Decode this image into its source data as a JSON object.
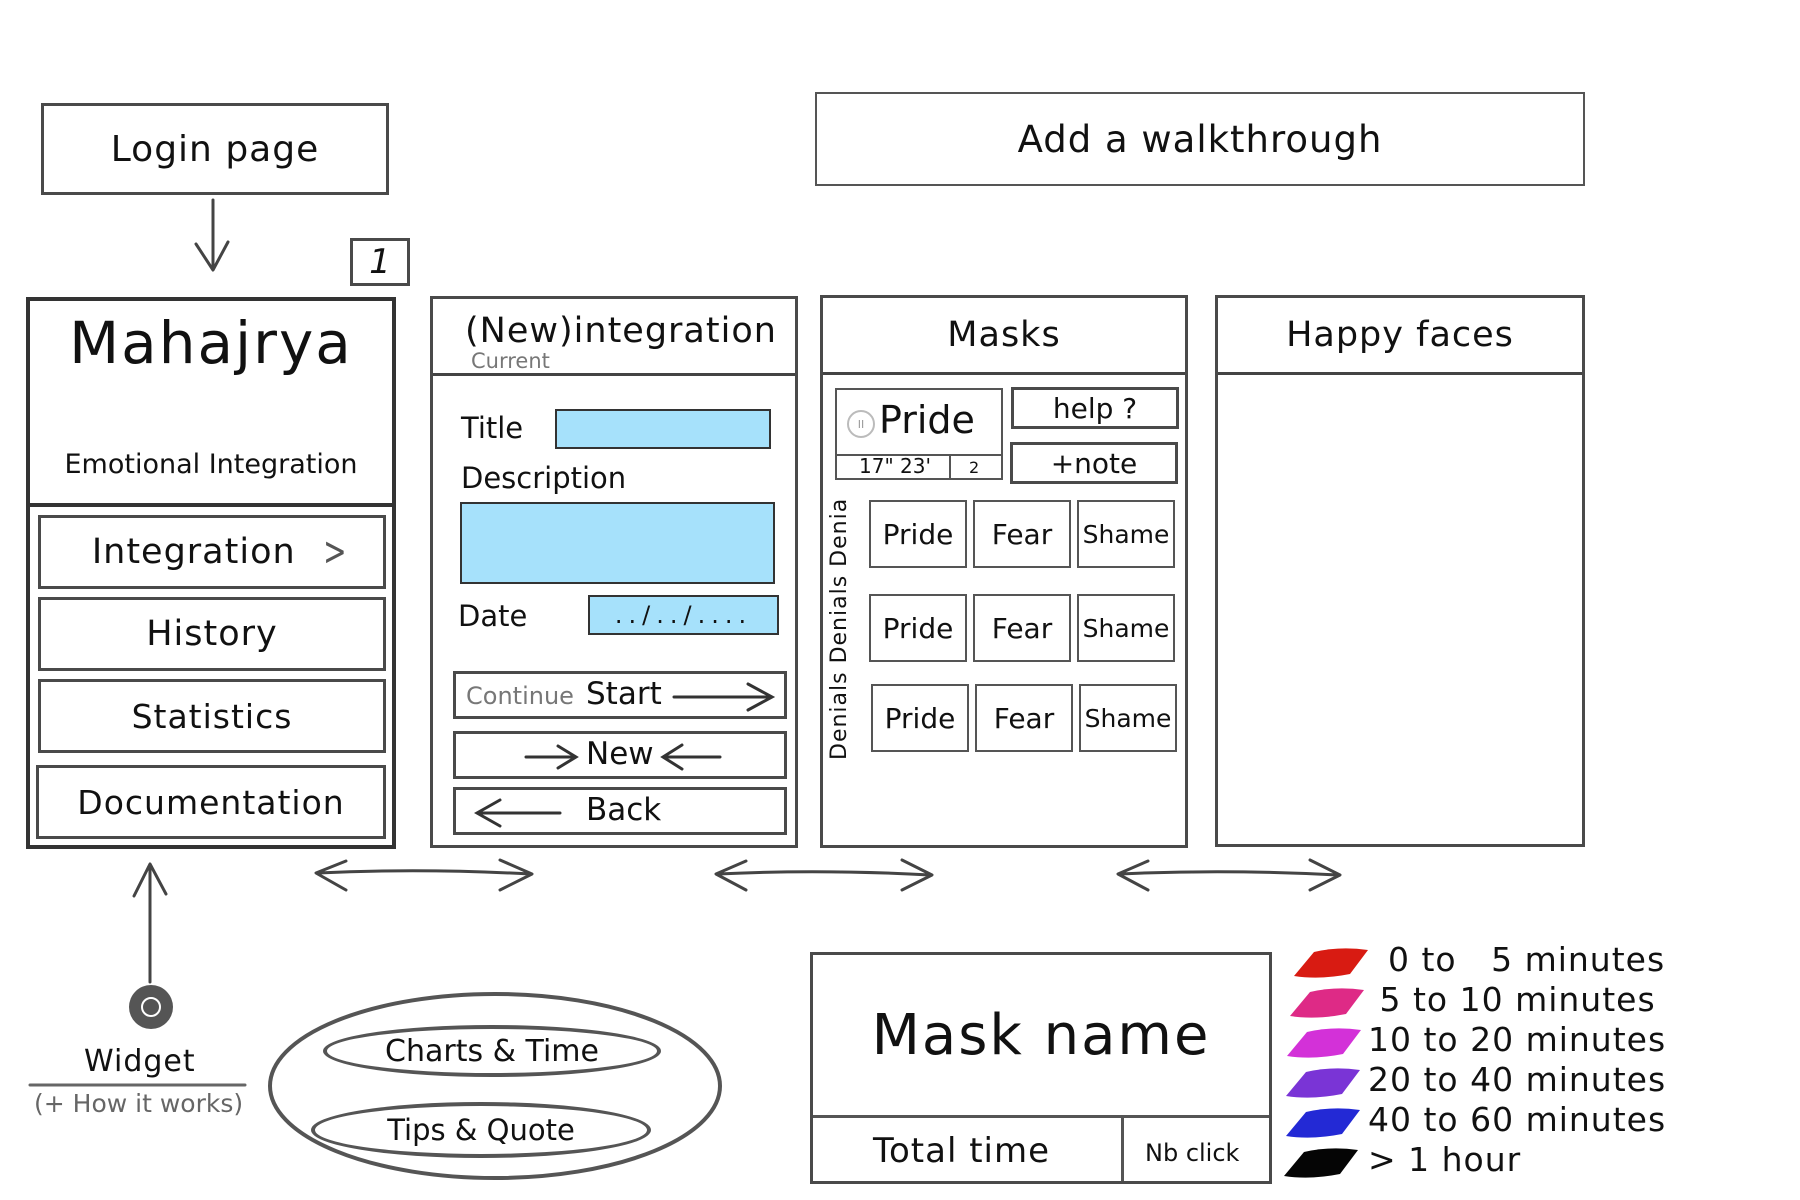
{
  "top": {
    "login_page": "Login page",
    "add_walkthrough": "Add a walkthrough",
    "badge_number": "1"
  },
  "home": {
    "app_name": "Mahajrya",
    "subtitle": "Emotional Integration",
    "menu": [
      {
        "label": "Integration",
        "chevron": true
      },
      {
        "label": "History"
      },
      {
        "label": "Statistics"
      },
      {
        "label": "Documentation"
      }
    ]
  },
  "integration": {
    "title_prefix": "(New)",
    "title_main": "integration",
    "title_alt": "Current",
    "fields": {
      "title_label": "Title",
      "description_label": "Description",
      "date_label": "Date",
      "date_value": "../../...."
    },
    "buttons": {
      "continue": "Continue",
      "start": "Start",
      "new": "New",
      "back": "Back"
    }
  },
  "masks": {
    "header": "Masks",
    "current_mask": "Pride",
    "timer_value": "17\" 23'",
    "click_count": "2",
    "help_button": "help ?",
    "note_button": "+note",
    "side_label": "Denials Denials Denials",
    "grid": [
      [
        "Pride",
        "Fear",
        "Shame"
      ],
      [
        "Pride",
        "Fear",
        "Shame"
      ],
      [
        "Pride",
        "Fear",
        "Shame"
      ]
    ]
  },
  "happy_faces": {
    "header": "Happy faces"
  },
  "widget": {
    "label": "Widget",
    "sublabel": "(+ How it works)",
    "options": [
      "Charts & Time",
      "Tips & Quote"
    ]
  },
  "mask_card": {
    "name": "Mask name",
    "total_time": "Total time",
    "nb_click": "Nb click"
  },
  "legend": [
    {
      "label": "0 to   5 minutes",
      "color": "#d81b12"
    },
    {
      "label": " 5 to 10 minutes",
      "color": "#de2a86"
    },
    {
      "label": "10 to 20 minutes",
      "color": "#d331d8"
    },
    {
      "label": "20 to 40 minutes",
      "color": "#7a34d6"
    },
    {
      "label": "40 to 60 minutes",
      "color": "#2329d5"
    },
    {
      "label": "> 1 hour",
      "color": "#050505"
    }
  ]
}
